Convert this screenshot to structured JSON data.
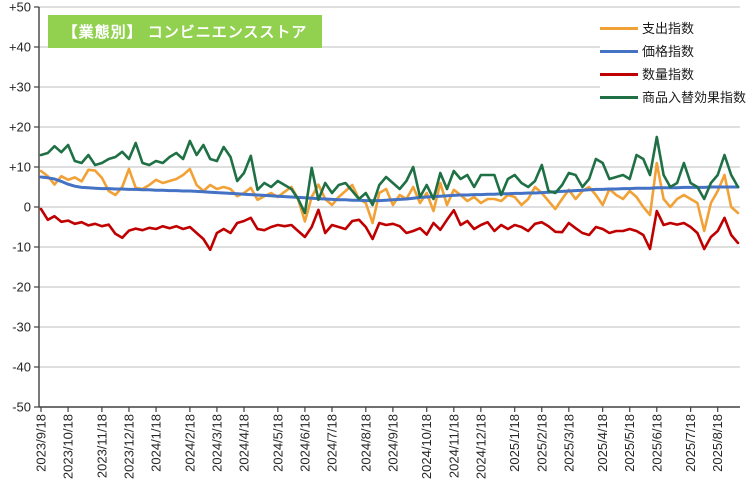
{
  "title_box_color": "#92D050",
  "axis_color": "#404040",
  "grid_color": "#BFBFBF",
  "label_color": "#262626",
  "chart_data": {
    "type": "line",
    "title": "【業態別】 コンビニエンスストア",
    "xlabel": "",
    "ylabel": "",
    "ylim": [
      -50,
      50
    ],
    "grid": true,
    "legend_position": "top-right",
    "n_points": 104,
    "y_tick_values": [
      50,
      40,
      30,
      20,
      10,
      0,
      -10,
      -20,
      -30,
      -40,
      -50
    ],
    "y_tick_labels": [
      "+50",
      "+40",
      "+30",
      "+20",
      "+10",
      "0",
      "-10",
      "-20",
      "-30",
      "-40",
      "-50"
    ],
    "x_tick_indices": [
      0,
      4,
      9,
      13,
      17,
      22,
      26,
      30,
      35,
      39,
      43,
      48,
      52,
      57,
      61,
      65,
      70,
      74,
      78,
      83,
      87,
      91,
      96,
      100
    ],
    "x_tick_labels": [
      "2023/9/18",
      "2023/10/18",
      "2023/11/18",
      "2023/12/18",
      "2024/1/18",
      "2024/2/18",
      "2024/3/18",
      "2024/4/18",
      "2024/5/18",
      "2024/6/18",
      "2024/7/18",
      "2024/8/18",
      "2024/9/18",
      "2024/10/18",
      "2024/11/18",
      "2024/12/18",
      "2025/1/18",
      "2025/2/18",
      "2025/3/18",
      "2025/4/18",
      "2025/5/18",
      "2025/6/18",
      "2025/7/18",
      "2025/8/18"
    ],
    "series": [
      {
        "name": "支出指数",
        "color": "#F2A136",
        "values": [
          9,
          7.7,
          5.6,
          7.7,
          6.8,
          7.4,
          6.4,
          9.3,
          9.1,
          7.3,
          4,
          3,
          5,
          9.5,
          4.8,
          4.5,
          5.5,
          6.8,
          6,
          6.5,
          7,
          8,
          9.5,
          5.5,
          4,
          5.5,
          4.5,
          5,
          4.5,
          2.7,
          3.5,
          4.8,
          1.8,
          2.7,
          3.5,
          2.5,
          3.8,
          5,
          2,
          -3.6,
          2.5,
          5.6,
          2,
          0.5,
          2.5,
          4,
          5.5,
          2,
          1,
          -4,
          3.5,
          4.5,
          0.5,
          3,
          2,
          5,
          1,
          3.5,
          -1,
          6,
          0.5,
          4.3,
          3,
          1.5,
          2.5,
          1,
          2,
          2,
          1.5,
          3,
          2.5,
          0.5,
          2,
          5,
          3.5,
          1.5,
          -0.5,
          2,
          4.3,
          2,
          4,
          5,
          3,
          0.5,
          4.5,
          3,
          2,
          4,
          2.5,
          0,
          -2,
          11,
          2,
          0,
          2,
          3,
          2,
          1,
          -6,
          1,
          4,
          8,
          0,
          -1.5
        ]
      },
      {
        "name": "価格指数",
        "color": "#4472C4",
        "values": [
          7.5,
          7.3,
          7.0,
          6.4,
          5.7,
          5.2,
          4.9,
          4.8,
          4.7,
          4.6,
          4.6,
          4.5,
          4.5,
          4.4,
          4.4,
          4.3,
          4.3,
          4.2,
          4.2,
          4.1,
          4.1,
          4.0,
          4.0,
          3.9,
          3.8,
          3.7,
          3.6,
          3.5,
          3.4,
          3.3,
          3.2,
          3.1,
          3.0,
          2.9,
          2.8,
          2.7,
          2.6,
          2.5,
          2.4,
          2.3,
          2.2,
          2.1,
          2.0,
          1.9,
          1.8,
          1.8,
          1.7,
          1.7,
          1.6,
          1.6,
          1.6,
          1.7,
          1.8,
          1.9,
          2.0,
          2.2,
          2.4,
          2.5,
          2.6,
          2.7,
          2.8,
          2.9,
          3.0,
          3.0,
          3.1,
          3.1,
          3.2,
          3.2,
          3.3,
          3.3,
          3.4,
          3.4,
          3.5,
          3.5,
          3.6,
          3.7,
          3.8,
          3.9,
          4.0,
          4.1,
          4.2,
          4.3,
          4.4,
          4.4,
          4.5,
          4.5,
          4.6,
          4.6,
          4.7,
          4.7,
          4.7,
          4.8,
          4.8,
          4.8,
          4.8,
          4.9,
          4.9,
          4.9,
          4.9,
          5.0,
          5.0,
          5.0,
          5.0,
          5.0
        ]
      },
      {
        "name": "数量指数",
        "color": "#C00000",
        "values": [
          -0.5,
          -3.2,
          -2.3,
          -3.7,
          -3.4,
          -4.2,
          -3.8,
          -4.6,
          -4.2,
          -4.8,
          -4.4,
          -6.7,
          -7.7,
          -5.9,
          -5.4,
          -5.8,
          -5.2,
          -5.5,
          -4.8,
          -5.3,
          -4.8,
          -5.5,
          -5,
          -6.5,
          -8,
          -10.7,
          -6.5,
          -5.5,
          -6.5,
          -4,
          -3.5,
          -2.7,
          -5.5,
          -5.8,
          -5,
          -4.5,
          -4.8,
          -4.5,
          -6,
          -7.5,
          -5,
          -0.7,
          -6.5,
          -4.5,
          -5,
          -5.5,
          -3.5,
          -3.2,
          -5,
          -8,
          -4,
          -4.5,
          -4.2,
          -4.8,
          -6.5,
          -6,
          -5.3,
          -6.9,
          -4,
          -5.7,
          -3.2,
          -0.8,
          -4.5,
          -3.5,
          -5.5,
          -4.5,
          -3.8,
          -6,
          -4.5,
          -5.5,
          -4.5,
          -5,
          -6,
          -4.2,
          -3.8,
          -4.8,
          -6.2,
          -6.3,
          -4,
          -5.3,
          -6.5,
          -7,
          -5,
          -5.5,
          -6.5,
          -6,
          -6,
          -5.5,
          -6,
          -7,
          -10.5,
          -1,
          -4.5,
          -4,
          -4.4,
          -4,
          -5,
          -6.5,
          -10.5,
          -7.5,
          -6,
          -2.7,
          -7,
          -9
        ]
      },
      {
        "name": "商品入替効果指数",
        "color": "#1F7145",
        "values": [
          13,
          13.5,
          15.2,
          13.7,
          15.5,
          11.5,
          11,
          13,
          10.5,
          11,
          12,
          12.5,
          13.8,
          12,
          16,
          11,
          10.5,
          11.5,
          11,
          12.5,
          13.5,
          12,
          16.5,
          13,
          15.5,
          12,
          11.5,
          15,
          12.5,
          6.5,
          8.5,
          12.8,
          4.3,
          6,
          5,
          6.5,
          5.5,
          4.5,
          2,
          -1.5,
          9.8,
          1.8,
          6,
          3.5,
          5.5,
          6,
          4,
          2,
          3.5,
          0.5,
          5.5,
          7.5,
          6,
          4.5,
          6.5,
          10,
          2.5,
          5.5,
          2,
          8.5,
          4.5,
          9,
          7,
          8,
          5,
          8,
          8,
          8,
          3,
          7,
          8,
          6,
          5,
          6.5,
          10.5,
          4,
          3.5,
          5.5,
          8.5,
          8,
          5,
          7,
          12,
          11,
          7,
          7.5,
          8,
          7,
          13,
          12,
          8,
          17.5,
          8,
          5,
          6,
          11,
          6,
          5,
          2,
          6,
          8,
          13,
          8,
          5
        ]
      }
    ]
  }
}
